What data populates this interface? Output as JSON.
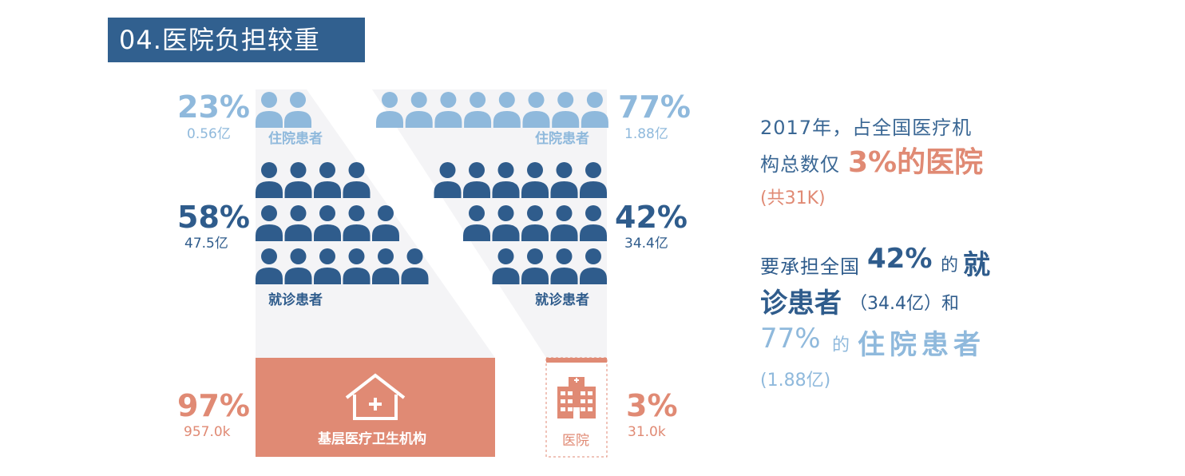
{
  "title": "04.医院负担较重",
  "left": {
    "inpatient": {
      "pct": "23%",
      "amount": "0.56亿",
      "label": "住院患者"
    },
    "outpatient": {
      "pct": "58%",
      "amount": "47.5亿",
      "label": "就诊患者"
    },
    "institution": {
      "pct": "97%",
      "amount": "957.0k",
      "label": "基层医疗卫生机构"
    }
  },
  "right": {
    "inpatient": {
      "pct": "77%",
      "amount": "1.88亿",
      "label": "住院患者"
    },
    "outpatient": {
      "pct": "42%",
      "amount": "34.4亿",
      "label": "就诊患者"
    },
    "institution": {
      "pct": "3%",
      "amount": "31.0k",
      "label": "医院"
    }
  },
  "summary": {
    "line1": "2017年，占全国医疗机",
    "line2a": "构总数仅",
    "line2b": "3%的医院",
    "line3": "(共31K)",
    "line4a": "要承担全国",
    "line4b": "42%",
    "line4c": "的",
    "line4d": "就",
    "line5a": "诊患者",
    "line5b": "（34.4亿）和",
    "line6a": "77%",
    "line6b": "的",
    "line6c": "住院患者",
    "line7": "(1.88亿)"
  },
  "colors": {
    "title_bg": "#31608f",
    "dark_blue": "#2f5c8c",
    "light_blue": "#8fb9dc",
    "coral": "#e08a74",
    "panel_bg": "#f4f4f6"
  }
}
